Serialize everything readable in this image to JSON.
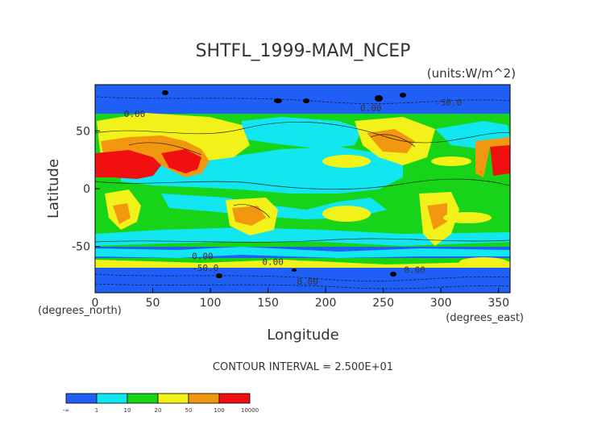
{
  "chart_data": {
    "type": "heatmap",
    "title": "SHTFL_1999-MAM_NCEP",
    "units_label": "(units:W/m^2)",
    "xlabel": "Longitude",
    "ylabel": "Latitude",
    "x_unit_label": "(degrees_east)",
    "y_unit_label": "(degrees_north)",
    "xlim": [
      0,
      360
    ],
    "ylim": [
      -90,
      90
    ],
    "x_ticks": [
      0,
      50,
      100,
      150,
      200,
      250,
      300,
      350
    ],
    "y_ticks": [
      50,
      0,
      -50
    ],
    "x_tick_labels": [
      "0",
      "50",
      "100",
      "150",
      "200",
      "250",
      "300",
      "350"
    ],
    "y_tick_labels": [
      "50",
      "0",
      "-50"
    ],
    "contour_interval_text": "CONTOUR INTERVAL = 2.500E+01",
    "contour_labels": [
      "0.00",
      "0.00",
      "-50.0",
      "0.00",
      "0.00",
      "-50.0",
      "0.00",
      "0.00"
    ],
    "colorbar": {
      "labels": [
        "-∞",
        "1",
        "10",
        "20",
        "50",
        "100",
        "10000"
      ],
      "colors": [
        "#1f5ff5",
        "#12e6f0",
        "#18d418",
        "#f2f21a",
        "#f29810",
        "#f01010"
      ]
    }
  }
}
